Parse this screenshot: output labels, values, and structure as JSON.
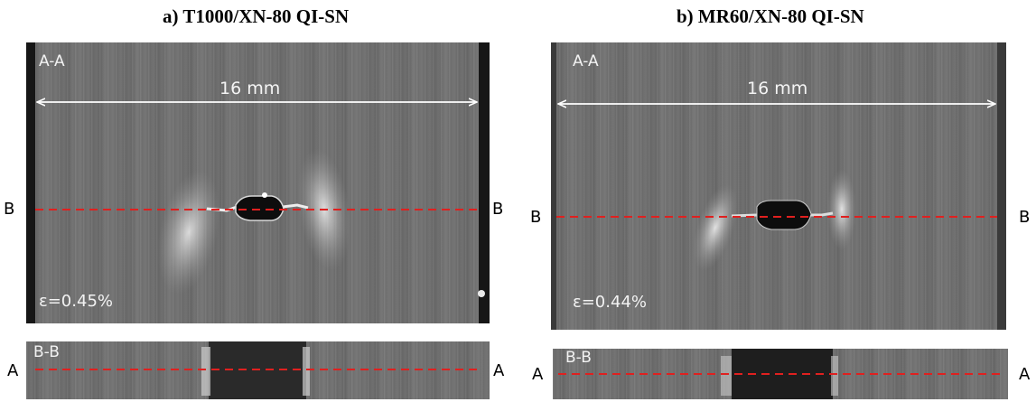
{
  "panels": {
    "a": {
      "title": "a) T1000/XN-80 QI-SN",
      "view_label": "A-A",
      "scale_label": "16 mm",
      "strain": "ε=0.45%",
      "section_label": "B-B"
    },
    "b": {
      "title": "b) MR60/XN-80 QI-SN",
      "view_label": "A-A",
      "scale_label": "16 mm",
      "strain": "ε=0.44%",
      "section_label": "B-B"
    }
  },
  "markers": {
    "b_left": "B",
    "b_right": "B",
    "a_left": "A",
    "a_right": "A"
  },
  "colors": {
    "cut_line": "#e0201f",
    "scale_line": "#ffffff"
  }
}
